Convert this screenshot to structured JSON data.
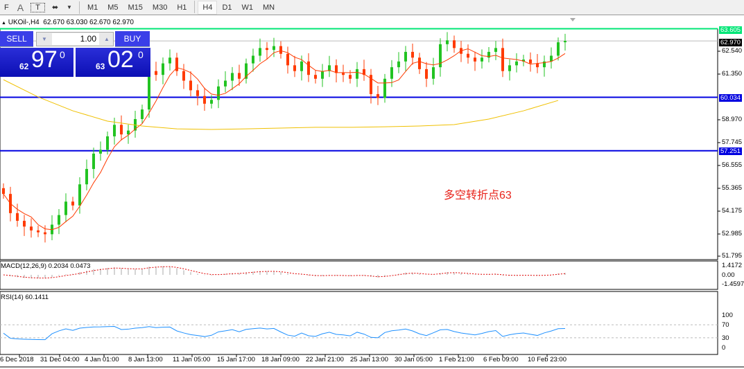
{
  "toolbar": {
    "items": [
      "F",
      "A",
      "T",
      "⬌"
    ],
    "timeframes": [
      "M1",
      "M5",
      "M15",
      "M30",
      "H1",
      "H4",
      "D1",
      "W1",
      "MN"
    ],
    "active": "H4"
  },
  "header": {
    "symbol": "UKOil-,H4",
    "ohlc": "62.670 63.030 62.670 62.970"
  },
  "trade": {
    "sell_label": "SELL",
    "buy_label": "BUY",
    "lot": "1.00",
    "sell_big": "62",
    "sell_main": "97",
    "sell_sup": "0",
    "buy_big": "63",
    "buy_main": "02",
    "buy_sup": "0"
  },
  "annotation": "多空转折点63",
  "colors": {
    "bull": "#22c322",
    "bear": "#ff3a00",
    "resistance": "#00e676",
    "support": "#0000e0",
    "ma_fast": "#ff3a00",
    "ma_slow": "#f0c000",
    "rsi": "#1e90ff",
    "macd_signal": "#e00000"
  },
  "price_axis": [
    "62.540",
    "61.350",
    "58.970",
    "57.745",
    "56.555",
    "55.365",
    "54.175",
    "52.985",
    "51.795"
  ],
  "levels": {
    "resistance": "63.605",
    "current": "62.970",
    "support1": "60.034",
    "support2": "57.251"
  },
  "macd": {
    "label": "MACD(12,26,9) 0.2034 0.0473",
    "axis": [
      "1.4172",
      "0.00",
      "-1.4597"
    ]
  },
  "rsi": {
    "label": "RSI(14) 60.1411",
    "axis": [
      "100",
      "70",
      "30",
      "0"
    ]
  },
  "time_axis": [
    "6 Dec 2018",
    "31 Dec 04:00",
    "4 Jan 01:00",
    "8 Jan 13:00",
    "11 Jan 05:00",
    "15 Jan 17:00",
    "18 Jan 09:00",
    "22 Jan 21:00",
    "25 Jan 13:00",
    "30 Jan 05:00",
    "1 Feb 21:00",
    "6 Feb 09:00",
    "10 Feb 23:00"
  ],
  "chart_data": {
    "type": "candlestick",
    "closes": [
      55.0,
      54.0,
      53.6,
      53.3,
      53.1,
      53.0,
      52.9,
      53.4,
      53.9,
      54.6,
      54.4,
      55.5,
      56.3,
      57.1,
      57.3,
      58.0,
      58.6,
      58.1,
      58.3,
      58.9,
      59.4,
      61.4,
      61.2,
      61.8,
      62.1,
      61.4,
      60.9,
      60.4,
      60.1,
      59.7,
      59.9,
      60.6,
      60.9,
      61.3,
      61.0,
      61.8,
      62.2,
      62.6,
      62.5,
      62.7,
      62.3,
      61.7,
      61.4,
      61.9,
      61.2,
      61.0,
      61.4,
      61.7,
      61.3,
      61.2,
      61.0,
      61.5,
      61.2,
      60.2,
      60.0,
      61.0,
      61.6,
      61.9,
      62.4,
      62.1,
      61.5,
      61.0,
      61.6,
      62.8,
      63.0,
      62.6,
      62.3,
      62.1,
      61.9,
      62.1,
      62.4,
      62.6,
      61.4,
      61.7,
      61.9,
      62.0,
      61.8,
      61.6,
      61.9,
      62.2,
      62.9,
      62.97
    ],
    "ma_slow": [
      60.95,
      60.05,
      59.33,
      58.79,
      58.54,
      58.39,
      58.36,
      58.39,
      58.43,
      58.47,
      58.47,
      58.5,
      58.54,
      58.61,
      58.9,
      59.33,
      59.87
    ],
    "ylim": [
      51.795,
      63.605
    ]
  }
}
